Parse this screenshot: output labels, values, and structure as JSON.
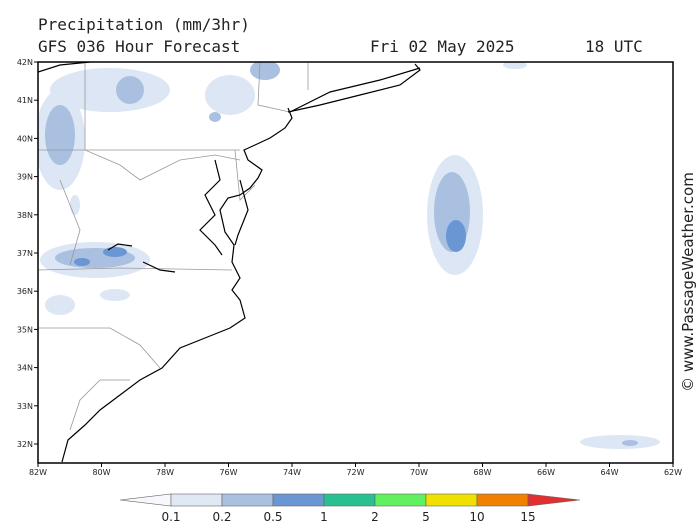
{
  "header": {
    "title": "Precipitation (mm/3hr)",
    "subtitle": "GFS 036 Hour Forecast",
    "valid_date": "Fri 02 May 2025",
    "valid_time": "18 UTC"
  },
  "map": {
    "lat_labels": [
      "42N",
      "41N",
      "40N",
      "39N",
      "38N",
      "37N",
      "36N",
      "35N",
      "34N",
      "33N",
      "32N"
    ],
    "lon_labels": [
      "82W",
      "80W",
      "78W",
      "76W",
      "74W",
      "72W",
      "70W",
      "68W",
      "66W",
      "64W",
      "62W"
    ]
  },
  "colorbar": {
    "labels": [
      "0.1",
      "0.2",
      "0.5",
      "1",
      "2",
      "5",
      "10",
      "15"
    ]
  },
  "watermark": "© www.PassageWeather.com"
}
